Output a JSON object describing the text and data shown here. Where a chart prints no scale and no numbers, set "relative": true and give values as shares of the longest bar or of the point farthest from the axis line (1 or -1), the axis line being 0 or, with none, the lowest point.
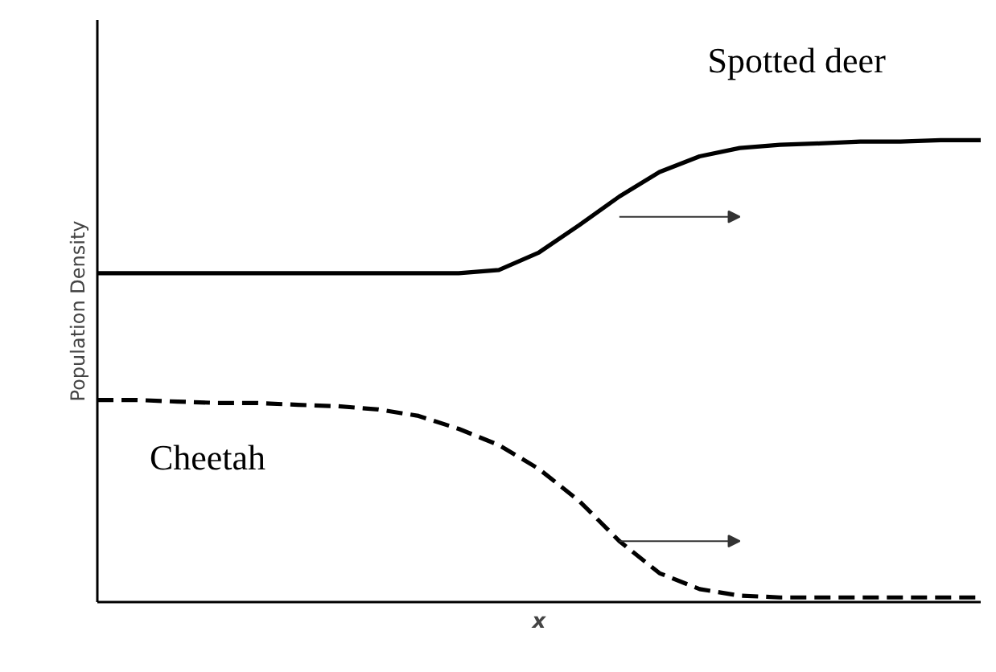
{
  "chart_data": {
    "type": "line",
    "relative": true,
    "xlabel": "x",
    "ylabel": "Population Density",
    "categories": [
      null,
      null,
      null,
      null,
      null,
      null,
      null,
      null,
      null,
      null,
      null,
      null,
      null,
      null,
      null,
      null,
      null,
      null,
      null,
      null,
      null,
      null,
      null
    ],
    "series": [
      {
        "name": "Spotted deer",
        "color": "#000000",
        "line_style": "solid",
        "values": [
          0.712,
          0.712,
          0.712,
          0.712,
          0.712,
          0.712,
          0.712,
          0.712,
          0.712,
          0.712,
          0.719,
          0.757,
          0.816,
          0.878,
          0.931,
          0.965,
          0.983,
          0.99,
          0.993,
          0.997,
          0.997,
          1,
          1
        ]
      },
      {
        "name": "Cheetah",
        "color": "#000000",
        "line_style": "dashed",
        "values": [
          0.4375,
          0.4375,
          0.434,
          0.431,
          0.431,
          0.427,
          0.424,
          0.417,
          0.403,
          0.375,
          0.34,
          0.288,
          0.219,
          0.132,
          0.0625,
          0.028,
          0.014,
          0.01,
          0.01,
          0.01,
          0.01,
          0.01,
          0.01
        ]
      }
    ],
    "legend": false
  }
}
